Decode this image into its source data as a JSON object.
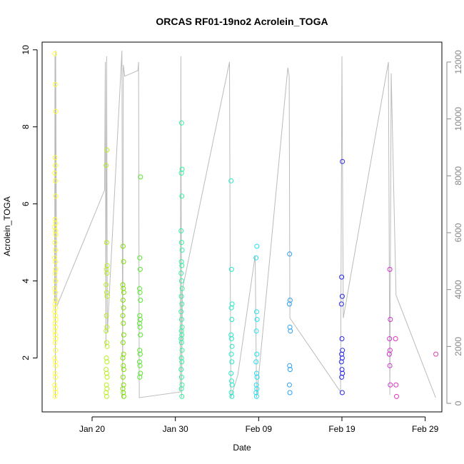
{
  "chart_data": {
    "type": "scatter",
    "title": "ORCAS RF01-19no2 Acrolein_TOGA",
    "xlabel": "Date",
    "ylabel": "Acrolein_TOGA",
    "ylim": [
      0.6,
      10.2
    ],
    "y_ticks": [
      2,
      4,
      6,
      8,
      10
    ],
    "x_range": [
      "2016-01-14",
      "2016-03-02"
    ],
    "x_ticks": [
      {
        "date": "2016-01-20",
        "label": "Jan 20"
      },
      {
        "date": "2016-01-30",
        "label": "Jan 30"
      },
      {
        "date": "2016-02-09",
        "label": "Feb 09"
      },
      {
        "date": "2016-02-19",
        "label": "Feb 19"
      },
      {
        "date": "2016-02-29",
        "label": "Feb 29"
      }
    ],
    "secondary_axis": {
      "side": "right",
      "ylim": [
        -300,
        12700
      ],
      "ticks": [
        0,
        2000,
        4000,
        6000,
        8000,
        10000,
        12000
      ],
      "color": "#888888",
      "line_color": "#bbbbbb"
    },
    "grid": false,
    "flights": [
      {
        "date": "2016-01-15T14:00",
        "color": "#ffff33",
        "values": [
          9.9,
          9.1,
          8.4,
          7.2,
          7.0,
          6.8,
          6.6,
          6.2,
          5.6,
          5.5,
          5.4,
          5.3,
          5.2,
          5.0,
          4.8,
          4.6,
          4.5,
          4.3,
          4.2,
          4.0,
          3.8,
          3.7,
          3.5,
          3.4,
          3.3,
          3.2,
          3.1,
          3.0,
          2.9,
          2.8,
          2.7,
          2.6,
          2.5,
          2.4,
          2.2,
          2.0,
          1.9,
          1.8,
          1.6,
          1.5,
          1.3,
          1.2,
          1.1,
          1.0
        ]
      },
      {
        "date": "2016-01-21T18:00",
        "color": "#b8f020",
        "values": [
          7.4,
          7.0,
          5.0,
          4.4,
          4.3,
          4.2,
          3.9,
          3.7,
          3.6,
          3.1,
          2.8,
          2.7,
          2.4,
          2.3,
          2.0,
          1.9,
          1.7,
          1.6,
          1.5,
          1.3,
          1.2,
          1.1,
          1.0
        ]
      },
      {
        "date": "2016-01-23T18:00",
        "color": "#7fe000",
        "values": [
          4.9,
          4.5,
          3.9,
          3.8,
          3.7,
          3.5,
          3.3,
          3.1,
          2.9,
          2.6,
          2.4,
          2.1,
          2.0,
          1.8,
          1.7,
          1.5,
          1.3,
          1.2,
          1.1,
          1.0
        ]
      },
      {
        "date": "2016-01-25T18:00",
        "color": "#55e82a",
        "values": [
          6.7,
          4.6,
          4.3,
          3.8,
          3.7,
          3.5,
          3.1,
          3.0,
          2.9,
          2.8,
          2.6,
          2.2,
          2.1,
          1.9,
          1.8,
          1.6,
          1.5
        ]
      },
      {
        "date": "2016-01-30T18:00",
        "color": "#33f2a0",
        "values": [
          8.1,
          6.9,
          6.8,
          6.2,
          5.3,
          5.0,
          4.8,
          4.5,
          4.4,
          4.2,
          4.0,
          3.8,
          3.6,
          3.4,
          3.2,
          3.0,
          2.8,
          2.7,
          2.6,
          2.5,
          2.4,
          2.2,
          2.0,
          1.9,
          1.7,
          1.5,
          1.3,
          1.2,
          1.0
        ]
      },
      {
        "date": "2016-02-05T18:00",
        "color": "#22ecc8",
        "values": [
          6.6,
          4.3,
          3.4,
          3.3,
          3.0,
          2.6,
          2.5,
          2.3,
          2.1,
          1.9,
          1.6,
          1.4,
          1.3,
          1.1,
          1.0
        ]
      },
      {
        "date": "2016-02-08T18:00",
        "color": "#22e0f0",
        "values": [
          4.9,
          4.6,
          3.2,
          3.0,
          2.7,
          2.1,
          1.9,
          1.6,
          1.5,
          1.3,
          1.2,
          1.1,
          1.0
        ]
      },
      {
        "date": "2016-02-12T18:00",
        "color": "#2aa0f0",
        "values": [
          4.7,
          3.5,
          3.4,
          2.8,
          2.7,
          1.8,
          1.7,
          1.3,
          1.1
        ]
      },
      {
        "date": "2016-02-19T00:00",
        "color": "#2a2ae8",
        "values": [
          7.1,
          4.1,
          3.6,
          3.4,
          2.5,
          2.2,
          2.1,
          2.0,
          1.9,
          1.7,
          1.6,
          1.5,
          1.1
        ]
      },
      {
        "date": "2016-02-24T18:00",
        "color": "#d033cc",
        "values": [
          4.3,
          3.0,
          2.5,
          2.2,
          2.1,
          1.8,
          1.3
        ]
      },
      {
        "date": "2016-02-25T12:00",
        "color": "#e033c0",
        "values": [
          2.5,
          1.3,
          1.0
        ]
      },
      {
        "date": "2016-03-01T06:00",
        "color": "#e040b0",
        "values": [
          2.1
        ]
      }
    ],
    "altitude_series": {
      "name": "",
      "color": "#bbbbbb",
      "points": [
        [
          "2016-01-15T12:00",
          3600
        ],
        [
          "2016-01-15T13:00",
          12200
        ],
        [
          "2016-01-15T14:00",
          200
        ],
        [
          "2016-01-15T15:00",
          12400
        ],
        [
          "2016-01-15T18:00",
          3400
        ],
        [
          "2016-01-21T12:00",
          7500
        ],
        [
          "2016-01-21T14:00",
          12000
        ],
        [
          "2016-01-21T16:00",
          2000
        ],
        [
          "2016-01-21T18:00",
          12200
        ],
        [
          "2016-01-21T20:00",
          2500
        ],
        [
          "2016-01-23T14:00",
          12400
        ],
        [
          "2016-01-23T16:00",
          200
        ],
        [
          "2016-01-23T18:00",
          11900
        ],
        [
          "2016-01-23T22:00",
          11500
        ],
        [
          "2016-01-25T12:00",
          11700
        ],
        [
          "2016-01-25T14:00",
          12000
        ],
        [
          "2016-01-25T16:00",
          200
        ],
        [
          "2016-01-30T14:00",
          400
        ],
        [
          "2016-01-30T16:00",
          12200
        ],
        [
          "2016-01-30T18:00",
          200
        ],
        [
          "2016-01-30T20:00",
          4000
        ],
        [
          "2016-02-05T12:00",
          12000
        ],
        [
          "2016-02-05T14:00",
          4800
        ],
        [
          "2016-02-05T16:00",
          200
        ],
        [
          "2016-02-06T12:00",
          1000
        ],
        [
          "2016-02-08T14:00",
          5200
        ],
        [
          "2016-02-08T18:00",
          200
        ],
        [
          "2016-02-12T12:00",
          11800
        ],
        [
          "2016-02-12T16:00",
          11500
        ],
        [
          "2016-02-12T18:00",
          3000
        ],
        [
          "2016-02-18T20:00",
          400
        ],
        [
          "2016-02-19T00:00",
          12200
        ],
        [
          "2016-02-19T04:00",
          3000
        ],
        [
          "2016-02-24T14:00",
          12000
        ],
        [
          "2016-02-24T18:00",
          300
        ],
        [
          "2016-02-24T22:00",
          11600
        ],
        [
          "2016-02-25T12:00",
          3800
        ],
        [
          "2016-03-01T06:00",
          200
        ]
      ]
    }
  }
}
